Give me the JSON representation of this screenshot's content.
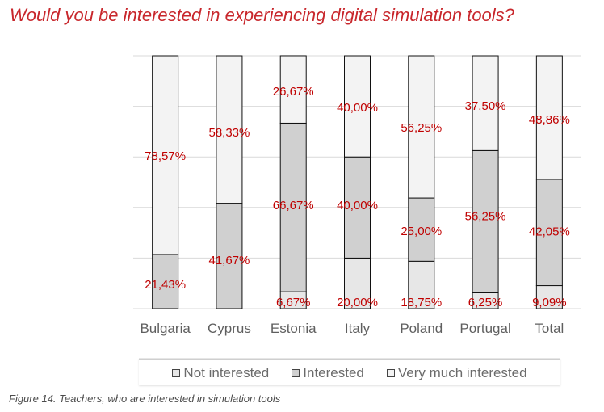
{
  "title": "Would you be interested in experiencing digital simulation tools?",
  "caption": "Figure 14. Teachers, who are interested in simulation tools",
  "colors": {
    "title": "#c8272c",
    "label": "#c00000",
    "not_interested": "#e7e7e7",
    "interested": "#d0d0d0",
    "very_much_interested": "#f3f3f3",
    "grid": "#d9d9d9",
    "axis_text": "#5f5f5f"
  },
  "legend": [
    {
      "label": "Not interested",
      "color": "#e7e7e7"
    },
    {
      "label": "Interested",
      "color": "#d0d0d0"
    },
    {
      "label": "Very much interested",
      "color": "#f3f3f3"
    }
  ],
  "chart_data": {
    "type": "bar",
    "stacked": true,
    "categories": [
      "Bulgaria",
      "Cyprus",
      "Estonia",
      "Italy",
      "Poland",
      "Portugal",
      "Total"
    ],
    "series": [
      {
        "name": "Not interested",
        "values": [
          0,
          0,
          6.67,
          20,
          18.75,
          6.25,
          9.09
        ],
        "labels": [
          "",
          "",
          "6,67%",
          "20,00%",
          "18,75%",
          "6,25%",
          "9,09%"
        ]
      },
      {
        "name": "Interested",
        "values": [
          21.43,
          41.67,
          66.67,
          40,
          25,
          56.25,
          42.05
        ],
        "labels": [
          "21,43%",
          "41,67%",
          "66,67%",
          "40,00%",
          "25,00%",
          "56,25%",
          "42,05%"
        ]
      },
      {
        "name": "Very much interested",
        "values": [
          78.57,
          58.33,
          26.67,
          40,
          56.25,
          37.5,
          48.86
        ],
        "labels": [
          "78,57%",
          "58,33%",
          "26,67%",
          "40,00%",
          "56,25%",
          "37,50%",
          "48,86%"
        ]
      }
    ],
    "ylim": [
      0,
      100
    ],
    "grid": true,
    "legend_position": "bottom"
  }
}
